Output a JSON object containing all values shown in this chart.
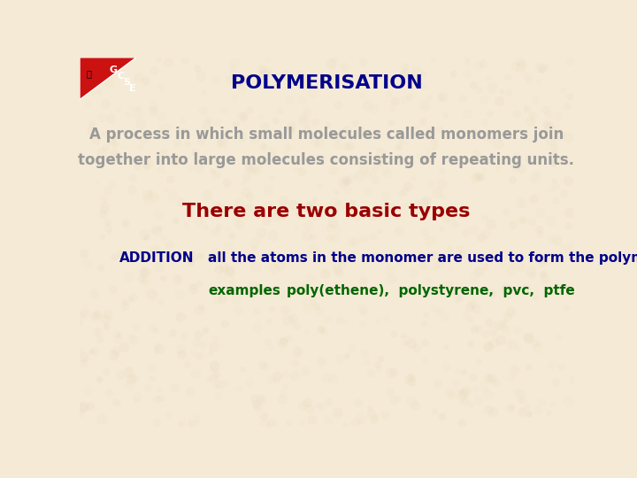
{
  "title": "POLYMERISATION",
  "title_color": "#00008B",
  "title_fontsize": 16,
  "description_line1": "A process in which small molecules called monomers join",
  "description_line2": "together into large molecules consisting of repeating units.",
  "description_color": "#999999",
  "description_fontsize": 12,
  "subtitle": "There are two basic types",
  "subtitle_color": "#990000",
  "subtitle_fontsize": 16,
  "addition_label": "ADDITION",
  "addition_label_color": "#00008B",
  "addition_label_fontsize": 11,
  "addition_desc": "all the atoms in the monomer are used to form the polymer",
  "addition_desc_color": "#00008B",
  "addition_desc_fontsize": 11,
  "examples_label": "examples",
  "examples_label_color": "#006600",
  "examples_label_fontsize": 11,
  "examples_value": "poly(ethene),  polystyrene,  pvc,  ptfe",
  "examples_value_color": "#006600",
  "examples_value_fontsize": 11,
  "background_color": "#f5ead5",
  "texture_color": "#d4c4a0",
  "logo_bg_color": "#cc1111",
  "logo_text_color": "#ffffff",
  "logo_text": "GCSE"
}
